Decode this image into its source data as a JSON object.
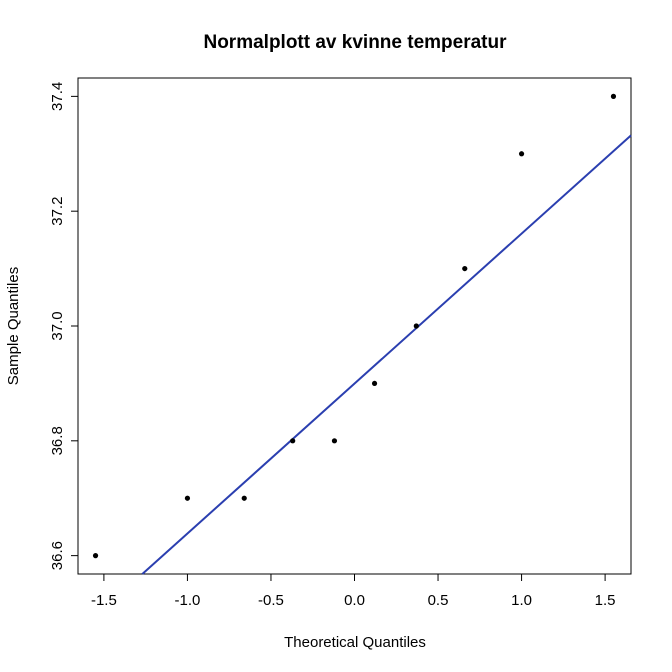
{
  "chart_data": {
    "type": "scatter",
    "title": "Normalplott av kvinne temperatur",
    "xlabel": "Theoretical Quantiles",
    "ylabel": "Sample Quantiles",
    "xlim": [
      -1.655,
      1.655
    ],
    "ylim": [
      36.568,
      37.432
    ],
    "x_ticks": [
      -1.5,
      -1.0,
      -0.5,
      0.0,
      0.5,
      1.0,
      1.5
    ],
    "x_tick_labels": [
      "-1.5",
      "-1.0",
      "-0.5",
      "0.0",
      "0.5",
      "1.0",
      "1.5"
    ],
    "y_ticks": [
      36.6,
      36.8,
      37.0,
      37.2,
      37.4
    ],
    "y_tick_labels": [
      "36.6",
      "36.8",
      "37.0",
      "37.2",
      "37.4"
    ],
    "grid": false,
    "legend": "none",
    "points": [
      {
        "x": -1.55,
        "y": 36.6
      },
      {
        "x": -1.0,
        "y": 36.7
      },
      {
        "x": -0.66,
        "y": 36.7
      },
      {
        "x": -0.37,
        "y": 36.8
      },
      {
        "x": -0.12,
        "y": 36.8
      },
      {
        "x": 0.12,
        "y": 36.9
      },
      {
        "x": 0.37,
        "y": 37.0
      },
      {
        "x": 0.66,
        "y": 37.1
      },
      {
        "x": 1.0,
        "y": 37.3
      },
      {
        "x": 1.55,
        "y": 37.4
      }
    ],
    "reference_line": {
      "x1": -1.27,
      "y1": 36.568,
      "x2": 1.655,
      "y2": 37.332
    },
    "colors": {
      "points": "#000000",
      "line": "#2b3fb0",
      "axes": "#000000"
    }
  }
}
